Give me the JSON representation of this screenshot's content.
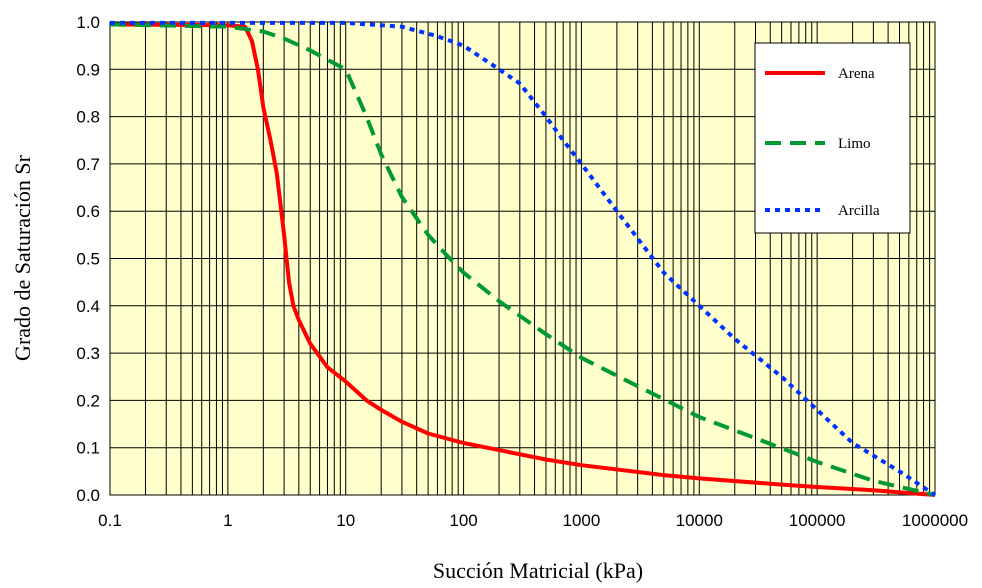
{
  "chart_data": {
    "type": "line",
    "title": "",
    "xlabel": "Succión Matricial (kPa)",
    "ylabel": "Grado de Saturación Sr",
    "xscale": "log",
    "xlim": [
      0.1,
      1000000
    ],
    "ylim": [
      0.0,
      1.0
    ],
    "x_ticks": [
      "0.1",
      "1",
      "10",
      "100",
      "1000",
      "10000",
      "100000",
      "1000000"
    ],
    "y_ticks": [
      "0.0",
      "0.1",
      "0.2",
      "0.3",
      "0.4",
      "0.5",
      "0.6",
      "0.7",
      "0.8",
      "0.9",
      "1.0"
    ],
    "grid": true,
    "legend": "top-right",
    "plot_background": "#ffffcc",
    "series": [
      {
        "name": "Arena",
        "color": "#ff0000",
        "style": "solid",
        "points": [
          [
            0.1,
            0.995
          ],
          [
            1,
            0.993
          ],
          [
            1.4,
            0.99
          ],
          [
            1.6,
            0.96
          ],
          [
            1.8,
            0.9
          ],
          [
            2,
            0.82
          ],
          [
            2.3,
            0.75
          ],
          [
            2.6,
            0.68
          ],
          [
            3,
            0.55
          ],
          [
            3.3,
            0.45
          ],
          [
            3.6,
            0.4
          ],
          [
            4,
            0.37
          ],
          [
            5,
            0.32
          ],
          [
            7,
            0.27
          ],
          [
            10,
            0.24
          ],
          [
            15,
            0.2
          ],
          [
            20,
            0.18
          ],
          [
            30,
            0.155
          ],
          [
            50,
            0.13
          ],
          [
            100,
            0.11
          ],
          [
            200,
            0.095
          ],
          [
            500,
            0.075
          ],
          [
            1000,
            0.063
          ],
          [
            5000,
            0.042
          ],
          [
            10000,
            0.035
          ],
          [
            50000,
            0.022
          ],
          [
            100000,
            0.017
          ],
          [
            300000,
            0.01
          ],
          [
            1000000,
            0.0
          ]
        ]
      },
      {
        "name": "Limo",
        "color": "#009933",
        "style": "dashed",
        "points": [
          [
            0.1,
            0.995
          ],
          [
            1,
            0.99
          ],
          [
            2,
            0.98
          ],
          [
            3,
            0.965
          ],
          [
            5,
            0.94
          ],
          [
            7,
            0.92
          ],
          [
            10,
            0.9
          ],
          [
            15,
            0.8
          ],
          [
            20,
            0.72
          ],
          [
            30,
            0.63
          ],
          [
            50,
            0.55
          ],
          [
            70,
            0.51
          ],
          [
            100,
            0.47
          ],
          [
            200,
            0.41
          ],
          [
            500,
            0.34
          ],
          [
            1000,
            0.29
          ],
          [
            3000,
            0.23
          ],
          [
            10000,
            0.165
          ],
          [
            30000,
            0.12
          ],
          [
            100000,
            0.07
          ],
          [
            300000,
            0.03
          ],
          [
            1000000,
            0.0
          ]
        ]
      },
      {
        "name": "Arcilla",
        "color": "#0033ff",
        "style": "dotted",
        "points": [
          [
            0.1,
            0.998
          ],
          [
            10,
            0.998
          ],
          [
            30,
            0.99
          ],
          [
            60,
            0.97
          ],
          [
            100,
            0.95
          ],
          [
            200,
            0.9
          ],
          [
            300,
            0.87
          ],
          [
            500,
            0.8
          ],
          [
            700,
            0.75
          ],
          [
            1000,
            0.7
          ],
          [
            2000,
            0.6
          ],
          [
            5000,
            0.47
          ],
          [
            10000,
            0.4
          ],
          [
            20000,
            0.33
          ],
          [
            50000,
            0.25
          ],
          [
            100000,
            0.18
          ],
          [
            200000,
            0.11
          ],
          [
            500000,
            0.05
          ],
          [
            1000000,
            0.0
          ]
        ]
      }
    ]
  }
}
